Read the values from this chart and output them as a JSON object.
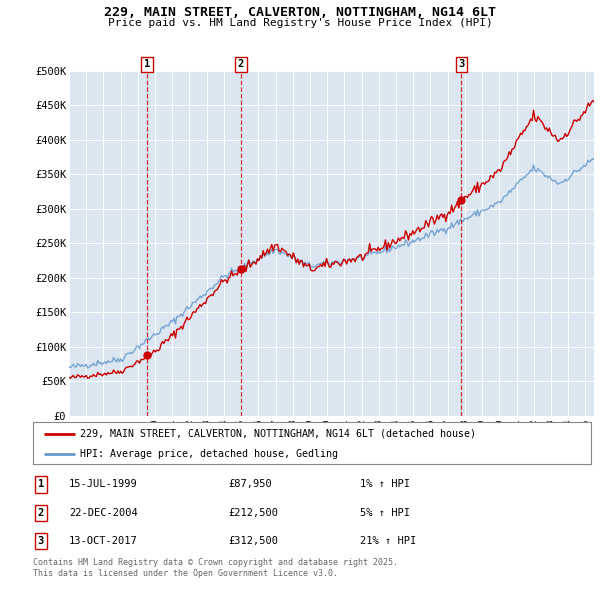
{
  "title1": "229, MAIN STREET, CALVERTON, NOTTINGHAM, NG14 6LT",
  "title2": "Price paid vs. HM Land Registry's House Price Index (HPI)",
  "plot_bg_color": "#dce6f1",
  "ylim": [
    0,
    500000
  ],
  "yticks": [
    0,
    50000,
    100000,
    150000,
    200000,
    250000,
    300000,
    350000,
    400000,
    450000,
    500000
  ],
  "ytick_labels": [
    "£0",
    "£50K",
    "£100K",
    "£150K",
    "£200K",
    "£250K",
    "£300K",
    "£350K",
    "£400K",
    "£450K",
    "£500K"
  ],
  "xlim_start": 1995.0,
  "xlim_end": 2025.5,
  "sale_dates": [
    1999.54,
    2004.98,
    2017.79
  ],
  "sale_prices": [
    87950,
    212500,
    312500
  ],
  "sale_labels": [
    "1",
    "2",
    "3"
  ],
  "sale_date_strs": [
    "15-JUL-1999",
    "22-DEC-2004",
    "13-OCT-2017"
  ],
  "sale_price_strs": [
    "£87,950",
    "£212,500",
    "£312,500"
  ],
  "sale_pct_strs": [
    "1% ↑ HPI",
    "5% ↑ HPI",
    "21% ↑ HPI"
  ],
  "line1_color": "#cc0000",
  "line2_color": "#6699cc",
  "legend1_label": "229, MAIN STREET, CALVERTON, NOTTINGHAM, NG14 6LT (detached house)",
  "legend2_label": "HPI: Average price, detached house, Gedling",
  "footer": "Contains HM Land Registry data © Crown copyright and database right 2025.\nThis data is licensed under the Open Government Licence v3.0."
}
